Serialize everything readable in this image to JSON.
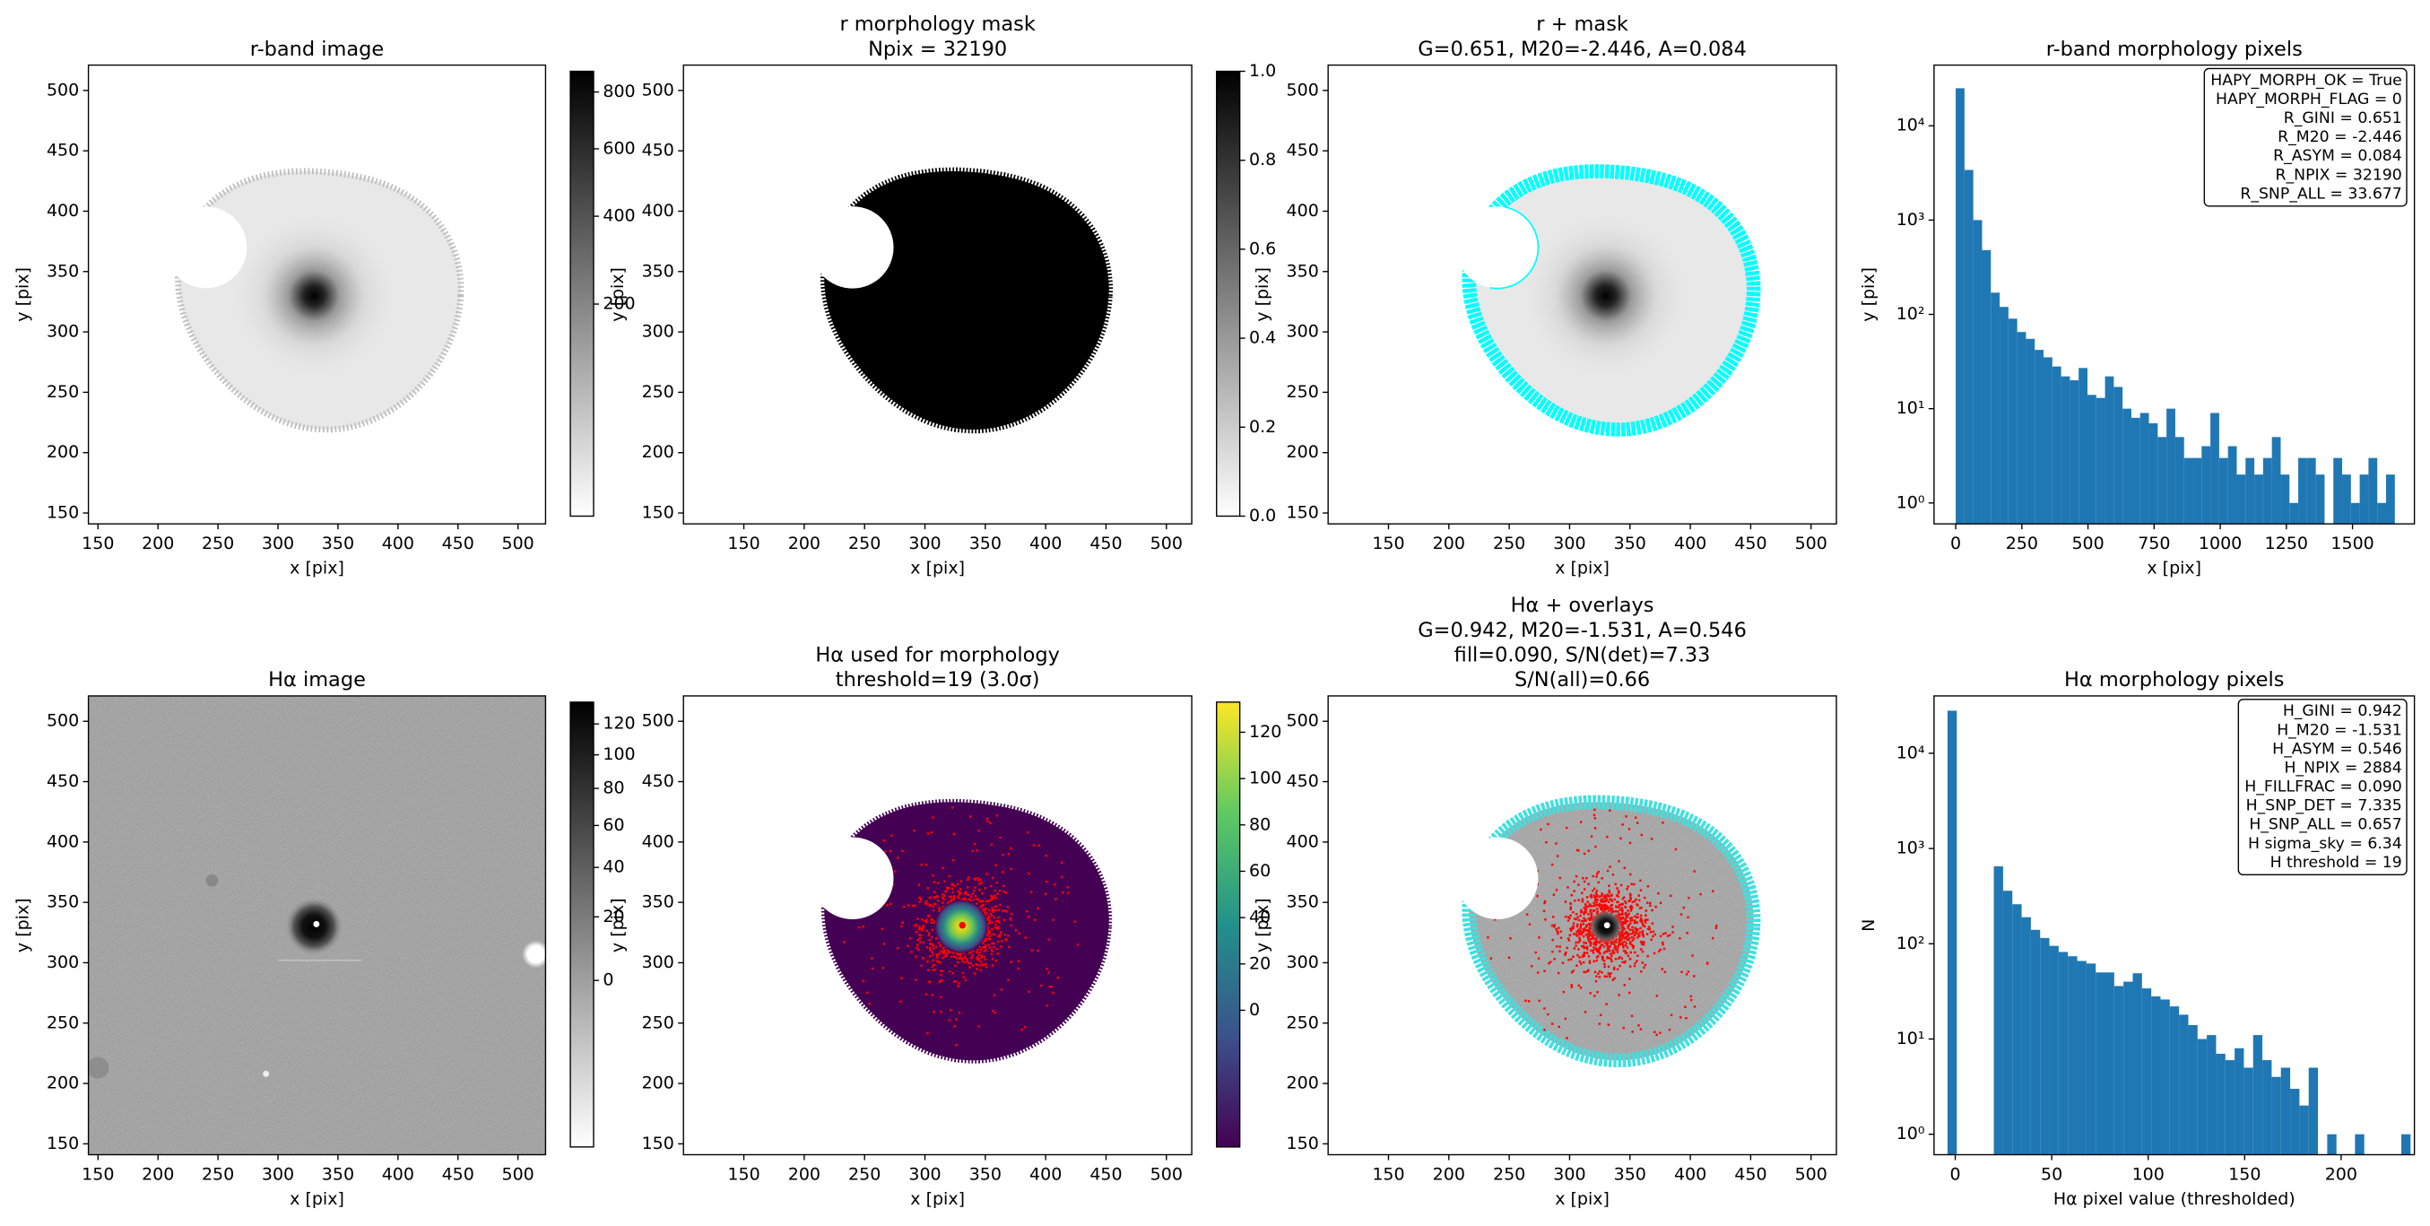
{
  "chart_data": [
    {
      "type": "image",
      "title": "r-band image",
      "xlabel": "x [pix]",
      "ylabel": "y [pix]",
      "xlim": [
        142,
        523
      ],
      "ylim": [
        141,
        521
      ],
      "xticks": [
        150,
        200,
        250,
        300,
        350,
        400,
        450,
        500
      ],
      "yticks": [
        150,
        200,
        250,
        300,
        350,
        400,
        450,
        500
      ],
      "colorbar": {
        "cmap": "gray_r",
        "scale": "sqrt",
        "lim": [
          0,
          880
        ],
        "ticks": [
          200,
          400,
          600,
          800
        ]
      }
    },
    {
      "type": "image",
      "title": [
        "r morphology mask",
        "Npix = 32190"
      ],
      "xlabel": "x [pix]",
      "ylabel": "y [pix]",
      "xlim": [
        100,
        521
      ],
      "ylim": [
        141,
        521
      ],
      "xticks": [
        150,
        200,
        250,
        300,
        350,
        400,
        450,
        500
      ],
      "yticks": [
        150,
        200,
        250,
        300,
        350,
        400,
        450,
        500
      ],
      "colorbar": {
        "cmap": "gray_r",
        "scale": "linear",
        "lim": [
          0,
          1
        ],
        "ticks": [
          {
            "value": 0,
            "label": "0.0"
          },
          0.2,
          0.4,
          0.6,
          0.8,
          {
            "value": 1,
            "label": "1.0"
          }
        ]
      }
    },
    {
      "type": "image",
      "title": [
        "r + mask",
        "G=0.651, M20=-2.446, A=0.084"
      ],
      "xlabel": "x [pix]",
      "ylabel": "y [pix]",
      "xlim": [
        100,
        521
      ],
      "ylim": [
        141,
        521
      ],
      "xticks": [
        150,
        200,
        250,
        300,
        350,
        400,
        450,
        500
      ],
      "yticks": [
        150,
        200,
        250,
        300,
        350,
        400,
        450,
        500
      ]
    },
    {
      "type": "histogram",
      "title": "r-band morphology pixels",
      "xlabel": "x [pix]",
      "ylabel": "y [pix]",
      "color": "#1f77b4",
      "log_y": true,
      "xlim": [
        -82,
        1734
      ],
      "ylim": [
        0.6,
        44000
      ],
      "xticks": [
        0,
        250,
        500,
        750,
        1000,
        1250,
        1500
      ],
      "yticks": [
        {
          "value": 1,
          "label": "10⁰"
        },
        {
          "value": 10,
          "label": "10¹"
        },
        {
          "value": 100,
          "label": "10²"
        },
        {
          "value": 1000,
          "label": "10³"
        },
        {
          "value": 10000,
          "label": "10⁴"
        }
      ],
      "bins": [
        0,
        33.2,
        66.4,
        99.6,
        132.8,
        166,
        199.2,
        232.4,
        265.6,
        298.8,
        332,
        365.2,
        398.4,
        431.6,
        464.8,
        498,
        531.2,
        564.4,
        597.6,
        630.8,
        664,
        697.2,
        730.4,
        763.6,
        796.8,
        830,
        863.2,
        896.4,
        929.6,
        962.8,
        996,
        1029.2,
        1062.4,
        1095.6,
        1128.8,
        1162,
        1195.2,
        1228.4,
        1261.6,
        1294.8,
        1328,
        1361.2,
        1394.4,
        1427.6,
        1460.8,
        1494,
        1527.2,
        1560.4,
        1593.6,
        1626.8,
        1660
      ],
      "values": [
        25000,
        3400,
        1000,
        480,
        170,
        120,
        90,
        65,
        55,
        42,
        35,
        28,
        22,
        20,
        27,
        14,
        13,
        22,
        17,
        10,
        8,
        9,
        7,
        5,
        10,
        5,
        3,
        3,
        4,
        9,
        3,
        4,
        2,
        3,
        2,
        3,
        5,
        2,
        1,
        3,
        3,
        2,
        0,
        3,
        2,
        1,
        2,
        3,
        1,
        2
      ],
      "annotations": [
        "HAPY_MORPH_OK = True",
        "HAPY_MORPH_FLAG = 0",
        "R_GINI = 0.651",
        "R_M20 = -2.446",
        "R_ASYM = 0.084",
        "R_NPIX = 32190",
        "R_SNP_ALL = 33.677"
      ]
    },
    {
      "type": "image",
      "title": "Hα image",
      "xlabel": "x [pix]",
      "ylabel": "y [pix]",
      "xlim": [
        142,
        523
      ],
      "ylim": [
        141,
        521
      ],
      "xticks": [
        150,
        200,
        250,
        300,
        350,
        400,
        450,
        500
      ],
      "yticks": [
        150,
        200,
        250,
        300,
        350,
        400,
        450,
        500
      ],
      "colorbar": {
        "cmap": "gray_r",
        "scale": "sqrt",
        "lim": [
          -22,
          135
        ],
        "ticks": [
          0,
          20,
          40,
          60,
          80,
          100,
          120
        ]
      }
    },
    {
      "type": "image",
      "title": [
        "Hα used for morphology",
        "threshold=19 (3.0σ)"
      ],
      "xlabel": "x [pix]",
      "ylabel": "y [pix]",
      "xlim": [
        100,
        521
      ],
      "ylim": [
        141,
        521
      ],
      "xticks": [
        150,
        200,
        250,
        300,
        350,
        400,
        450,
        500
      ],
      "yticks": [
        150,
        200,
        250,
        300,
        350,
        400,
        450,
        500
      ],
      "colorbar": {
        "cmap": "viridis",
        "scale": "linear",
        "lim": [
          -59,
          133
        ],
        "ticks": [
          0,
          20,
          40,
          60,
          80,
          100,
          120
        ]
      }
    },
    {
      "type": "image",
      "title": [
        "Hα + overlays",
        "G=0.942, M20=-1.531, A=0.546",
        "fill=0.090, S/N(det)=7.33",
        "S/N(all)=0.66"
      ],
      "xlabel": "x [pix]",
      "ylabel": "y [pix]",
      "xlim": [
        100,
        521
      ],
      "ylim": [
        141,
        521
      ],
      "xticks": [
        150,
        200,
        250,
        300,
        350,
        400,
        450,
        500
      ],
      "yticks": [
        150,
        200,
        250,
        300,
        350,
        400,
        450,
        500
      ]
    },
    {
      "type": "histogram",
      "title": "Hα morphology pixels",
      "xlabel": "Hα pixel value (thresholded)",
      "ylabel": "N",
      "color": "#1f77b4",
      "log_y": true,
      "xlim": [
        -11,
        238
      ],
      "ylim": [
        0.61,
        40000
      ],
      "xticks": [
        0,
        50,
        100,
        150,
        200
      ],
      "yticks": [
        {
          "value": 1,
          "label": "10⁰"
        },
        {
          "value": 10,
          "label": "10¹"
        },
        {
          "value": 100,
          "label": "10²"
        },
        {
          "value": 1000,
          "label": "10³"
        },
        {
          "value": 10000,
          "label": "10⁴"
        }
      ],
      "bins": [
        -4,
        0.8,
        5.6,
        10.4,
        15.2,
        20,
        24.8,
        29.6,
        34.4,
        39.2,
        44,
        48.8,
        53.6,
        58.4,
        63.2,
        68,
        72.8,
        77.6,
        82.4,
        87.2,
        92,
        96.8,
        101.6,
        106.4,
        111.2,
        116,
        120.8,
        125.6,
        130.4,
        135.2,
        140,
        144.8,
        149.6,
        154.4,
        159.2,
        164,
        168.8,
        173.6,
        178.4,
        183.2,
        188,
        192.8,
        197.6,
        202.4,
        207.2,
        212,
        216.8,
        221.6,
        226.4,
        231.2,
        236
      ],
      "values": [
        28000,
        0,
        0,
        0,
        0,
        650,
        360,
        260,
        190,
        140,
        115,
        95,
        82,
        74,
        66,
        62,
        50,
        50,
        36,
        40,
        49,
        34,
        28,
        26,
        22,
        18,
        14,
        10,
        11,
        7,
        6,
        8,
        5,
        11,
        6,
        4,
        5,
        3,
        2,
        5,
        0,
        1,
        0,
        0,
        1,
        0,
        0,
        0,
        0,
        1
      ],
      "annotations": [
        "H_GINI = 0.942",
        "H_M20 = -1.531",
        "H_ASYM = 0.546",
        "H_NPIX = 2884",
        "H_FILLFRAC = 0.090",
        "H_SNP_DET = 7.335",
        "H_SNP_ALL = 0.657",
        "H sigma_sky = 6.34",
        "H threshold = 19"
      ]
    }
  ]
}
